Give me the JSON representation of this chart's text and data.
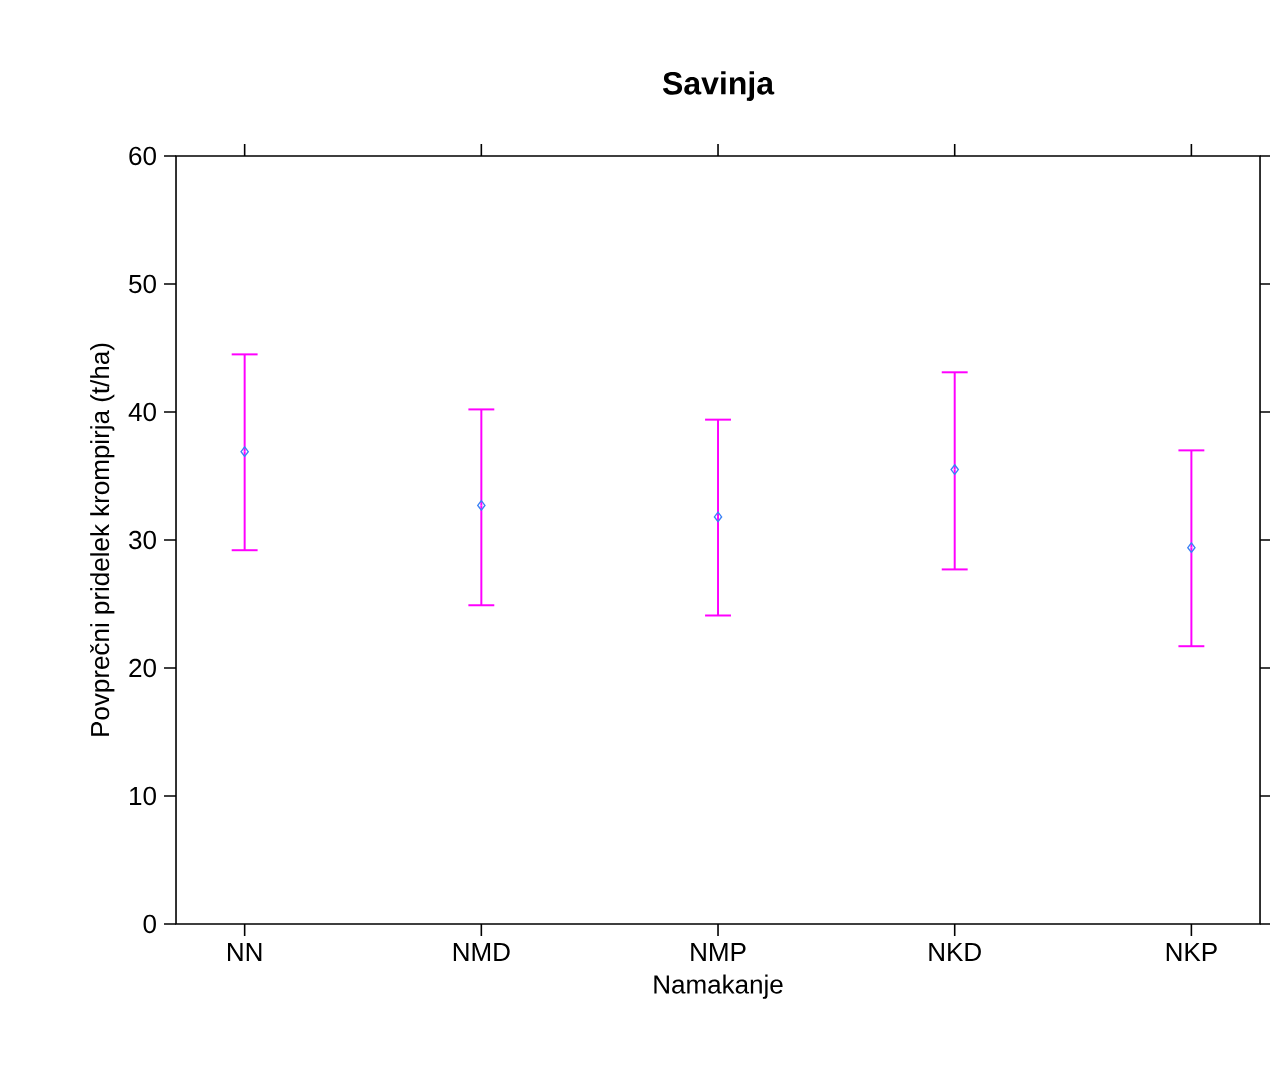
{
  "chart_data": {
    "type": "scatter",
    "title": "Savinja",
    "xlabel": "Namakanje",
    "ylabel": "Povprečni pridelek krompirja (t/ha)",
    "categories": [
      "NN",
      "NMD",
      "NMP",
      "NKD",
      "NKP"
    ],
    "series": [
      {
        "color": "#3b82f6",
        "values": [
          36.9,
          32.7,
          31.8,
          35.5,
          29.4
        ],
        "errors": [
          [
            29.2,
            44.5
          ],
          [
            24.9,
            40.2
          ],
          [
            24.1,
            39.4
          ],
          [
            27.7,
            43.1
          ],
          [
            21.7,
            37.0
          ]
        ]
      }
    ],
    "marker": "diamond",
    "ylim": [
      0,
      60
    ],
    "yticks": [
      0,
      10,
      20,
      30,
      40,
      50,
      60
    ]
  }
}
